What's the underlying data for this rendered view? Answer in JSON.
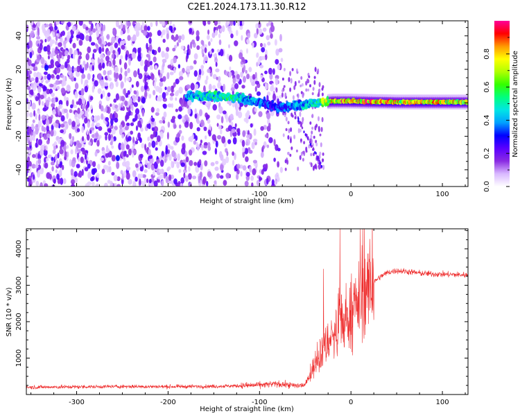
{
  "title": "C2E1.2024.173.11.30.R12",
  "chart_data": [
    {
      "type": "heatmap",
      "xlabel": "Height of straight line (km)",
      "ylabel": "Frequency (Hz)",
      "xlim": [
        -355,
        128
      ],
      "ylim": [
        -50,
        49
      ],
      "xticks": [
        -300,
        -200,
        -100,
        0,
        100
      ],
      "yticks": [
        -40,
        -20,
        0,
        20,
        40
      ],
      "grid": false,
      "colorbar": {
        "label": "Normalized spectral amplitude",
        "range": [
          0,
          1
        ],
        "ticks": [
          0.0,
          0.2,
          0.4,
          0.6,
          0.8
        ],
        "colormap": [
          "#ffffff",
          "#d9b8ff",
          "#8a2be2",
          "#5a00ff",
          "#0000ff",
          "#00a0ff",
          "#00e5e5",
          "#00ff7f",
          "#33ff00",
          "#b0ff00",
          "#ffff00",
          "#ff9900",
          "#ff0000",
          "#ff0099"
        ]
      },
      "ridge": {
        "x": [
          -180,
          -150,
          -120,
          -100,
          -80,
          -60,
          -40,
          -20,
          0,
          50,
          100,
          128
        ],
        "frequency": [
          4,
          4,
          3,
          0,
          -3,
          -2,
          0,
          1,
          1,
          0.5,
          0.5,
          0.5
        ],
        "peak_amplitude": [
          0.45,
          0.55,
          0.55,
          0.4,
          0.35,
          0.45,
          0.5,
          0.9,
          0.95,
          0.9,
          0.85,
          0.8
        ]
      },
      "scattered_noise_region": {
        "x_range": [
          -355,
          -75
        ],
        "frequency_range": [
          -50,
          49
        ],
        "amplitude_range": [
          0.05,
          0.25
        ]
      },
      "hotspots": [
        {
          "x": -333,
          "frequency": 21,
          "amplitude": 0.3
        },
        {
          "x": -255,
          "frequency": -33,
          "amplitude": 0.3
        }
      ]
    },
    {
      "type": "line",
      "xlabel": "Height of straight line (km)",
      "ylabel": "SNR (10 * v/v)",
      "xlim": [
        -355,
        128
      ],
      "ylim": [
        0,
        4550
      ],
      "xticks": [
        -300,
        -200,
        -100,
        0,
        100
      ],
      "yticks": [
        1000,
        2000,
        3000,
        4000
      ],
      "grid": false,
      "series": [
        {
          "color": "#ee2a2a",
          "x": [
            -355,
            -300,
            -250,
            -200,
            -150,
            -120,
            -100,
            -80,
            -60,
            -50,
            -40,
            -30,
            -20,
            -15,
            -10,
            0,
            10,
            20,
            30,
            40,
            50,
            60,
            80,
            100,
            128
          ],
          "y": [
            200,
            210,
            220,
            215,
            225,
            240,
            260,
            290,
            240,
            260,
            800,
            1300,
            1600,
            1700,
            1900,
            2200,
            2600,
            2950,
            3200,
            3350,
            3400,
            3380,
            3320,
            3300,
            3280
          ],
          "spikes": [
            {
              "x": -12,
              "y": 4550
            },
            {
              "x": 12,
              "y": 4100
            },
            {
              "x": -30,
              "y": 3450
            }
          ]
        }
      ]
    }
  ]
}
